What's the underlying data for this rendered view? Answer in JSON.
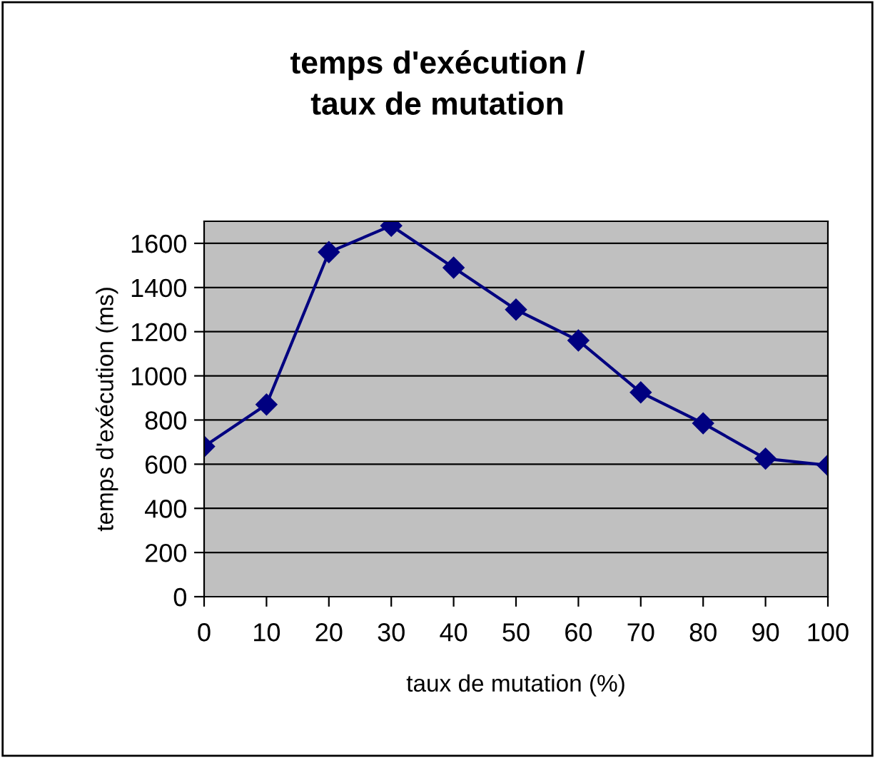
{
  "chart_data": {
    "type": "line",
    "title": "temps d'exécution /\ntaux de mutation",
    "xlabel": "taux de mutation (%)",
    "ylabel": "temps d'exécution (ms)",
    "categories": [
      "0",
      "10",
      "20",
      "30",
      "40",
      "50",
      "60",
      "70",
      "80",
      "90",
      "100"
    ],
    "series": [
      {
        "color": "#000080",
        "values": [
          680,
          870,
          1560,
          1680,
          1490,
          1300,
          1160,
          925,
          785,
          625,
          595
        ]
      }
    ],
    "ylim": [
      0,
      1700
    ],
    "yticks": [
      0,
      200,
      400,
      600,
      800,
      1000,
      1200,
      1400,
      1600
    ],
    "grid": "y",
    "marker": "diamond",
    "line_style": "solid"
  }
}
